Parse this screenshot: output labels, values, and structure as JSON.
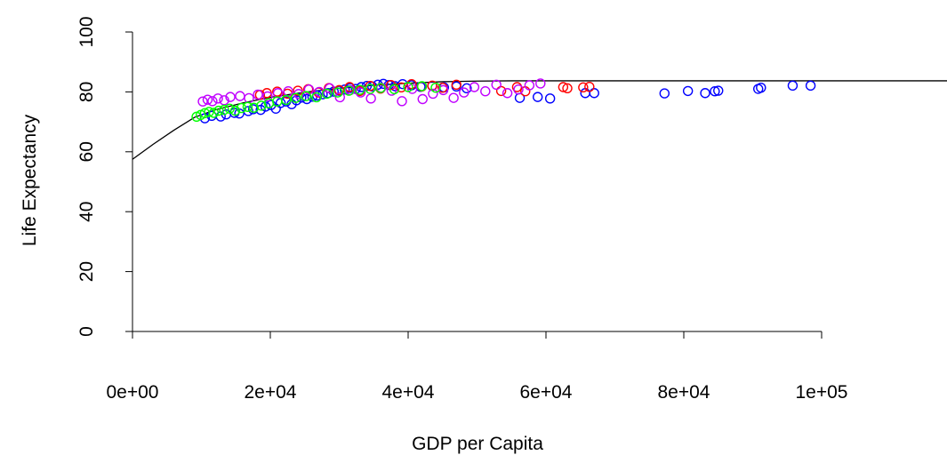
{
  "chart_data": {
    "type": "scatter",
    "title": "",
    "xlabel": "GDP per Capita",
    "ylabel": "Life Expectancy",
    "xlim": [
      0,
      120000
    ],
    "ylim": [
      0,
      100
    ],
    "x_ticks": [
      {
        "value": 0,
        "label": "0e+00"
      },
      {
        "value": 20000,
        "label": "2e+04"
      },
      {
        "value": 40000,
        "label": "4e+04"
      },
      {
        "value": 60000,
        "label": "6e+04"
      },
      {
        "value": 80000,
        "label": "8e+04"
      },
      {
        "value": 100000,
        "label": "1e+05"
      }
    ],
    "y_ticks": [
      {
        "value": 0,
        "label": "0"
      },
      {
        "value": 20,
        "label": "20"
      },
      {
        "value": 40,
        "label": "40"
      },
      {
        "value": 60,
        "label": "60"
      },
      {
        "value": 80,
        "label": "80"
      },
      {
        "value": 100,
        "label": "100"
      }
    ],
    "grid": false,
    "legend": "none",
    "fit_line": {
      "color": "#000000",
      "x": [
        0,
        3000,
        6000,
        9000,
        12000,
        16000,
        20000,
        25000,
        30000,
        35000,
        40000,
        45000,
        50000,
        55000,
        120000
      ],
      "y": [
        57.5,
        62.5,
        67.2,
        71.5,
        74.0,
        76.3,
        78.2,
        79.9,
        81.2,
        82.2,
        82.9,
        83.4,
        83.6,
        83.7,
        83.7
      ]
    },
    "series": [
      {
        "color": "#0000ff",
        "x": [
          10500,
          11500,
          12800,
          13600,
          14800,
          15500,
          16800,
          17500,
          18600,
          19300,
          20100,
          20800,
          21500,
          22300,
          23100,
          23800,
          24500,
          25300,
          26100,
          26800,
          27600,
          28400,
          29200,
          30000,
          30800,
          31600,
          32400,
          33200,
          34000,
          34800,
          35600,
          36400,
          37200,
          38100,
          39200,
          40500,
          41800,
          43500,
          45200,
          47000,
          48500,
          56200,
          58800,
          60600,
          65700,
          67000,
          77200,
          80600,
          83100,
          84500,
          85000,
          90800,
          91200,
          95800,
          98400
        ],
        "y": [
          71.2,
          72.0,
          71.8,
          72.5,
          73.0,
          72.8,
          73.6,
          74.2,
          74.0,
          75.1,
          75.6,
          74.4,
          76.3,
          76.8,
          75.9,
          77.2,
          78.1,
          77.6,
          78.4,
          78.8,
          79.2,
          79.6,
          80.1,
          80.4,
          80.8,
          81.3,
          81.0,
          81.6,
          82.0,
          81.8,
          82.4,
          82.7,
          82.3,
          81.9,
          82.6,
          82.2,
          81.7,
          82.0,
          81.5,
          81.8,
          81.2,
          78.0,
          78.3,
          77.8,
          79.6,
          79.6,
          79.5,
          80.3,
          79.6,
          80.2,
          80.4,
          81.0,
          81.4,
          82.1,
          82.1
        ]
      },
      {
        "color": "#ff0000",
        "x": [
          18500,
          19500,
          21000,
          22500,
          24000,
          25500,
          27000,
          28500,
          30000,
          31500,
          33000,
          34500,
          36000,
          37500,
          39000,
          40500,
          42000,
          43500,
          45000,
          47000,
          53500,
          55800,
          57000,
          62500,
          63100,
          65400,
          66300
        ],
        "y": [
          79.0,
          79.6,
          80.1,
          79.4,
          80.4,
          80.9,
          79.8,
          81.3,
          80.6,
          81.6,
          80.3,
          82.0,
          81.1,
          82.3,
          81.5,
          82.6,
          81.8,
          82.1,
          81.4,
          82.4,
          80.3,
          81.6,
          80.2,
          81.6,
          81.2,
          81.5,
          81.7
        ]
      },
      {
        "color": "#c000ff",
        "x": [
          10200,
          10900,
          11600,
          12400,
          13300,
          14200,
          15600,
          16900,
          18200,
          19600,
          21100,
          22600,
          24100,
          25600,
          27100,
          28600,
          30100,
          31600,
          33100,
          34600,
          36100,
          37600,
          39100,
          40600,
          42100,
          43600,
          45100,
          46600,
          48100,
          49600,
          51200,
          52800,
          54400,
          56000,
          57600,
          59200
        ],
        "y": [
          76.8,
          77.4,
          76.9,
          77.8,
          77.2,
          78.3,
          78.6,
          77.9,
          79.1,
          78.5,
          79.6,
          80.2,
          79.3,
          80.8,
          80.0,
          81.2,
          78.2,
          80.6,
          79.8,
          77.8,
          81.4,
          80.4,
          76.9,
          81.0,
          77.6,
          79.4,
          80.6,
          78.0,
          79.8,
          81.6,
          80.2,
          82.4,
          79.6,
          80.8,
          82.2,
          82.8
        ]
      },
      {
        "color": "#00ff00",
        "x": [
          9300,
          9900,
          10500,
          11100,
          11800,
          12500,
          13300,
          14100,
          14900,
          15800,
          16700,
          17600,
          18700,
          19800,
          21000,
          22300,
          23700,
          25200,
          26700,
          28200,
          29800,
          31400,
          33000,
          34500,
          36000,
          38000,
          40000,
          42000,
          44000
        ],
        "y": [
          71.7,
          72.3,
          72.9,
          73.3,
          73.0,
          73.7,
          74.0,
          74.4,
          73.7,
          74.6,
          75.0,
          74.7,
          75.4,
          76.2,
          76.8,
          77.3,
          78.0,
          78.6,
          78.2,
          79.4,
          79.8,
          80.4,
          80.7,
          81.0,
          81.3,
          80.9,
          81.6,
          81.9,
          81.4
        ]
      }
    ]
  }
}
